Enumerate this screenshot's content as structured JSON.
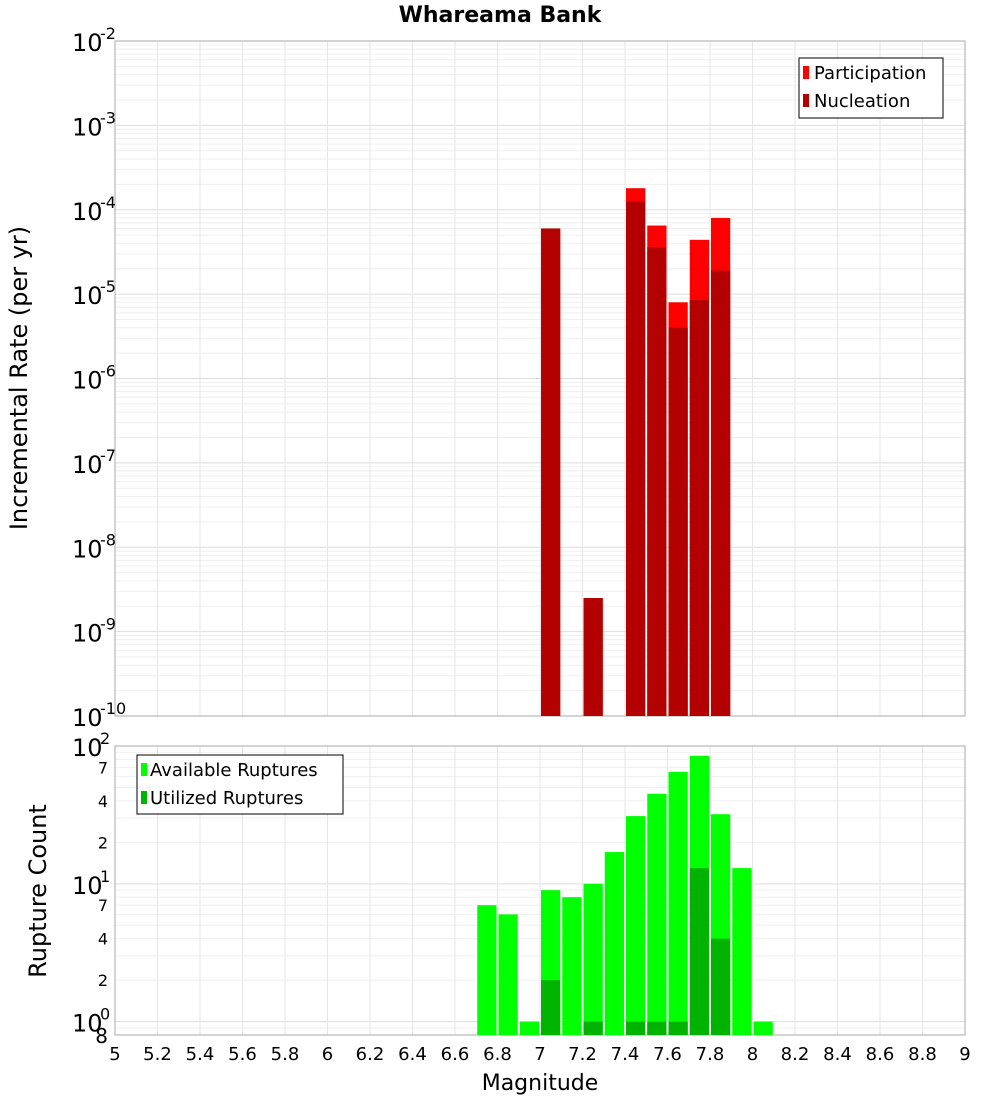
{
  "chart_data": [
    {
      "type": "bar",
      "title": "Whareama Bank",
      "ylabel": "Incremental Rate (per yr)",
      "yscale": "log",
      "ylim": [
        1e-10,
        0.01
      ],
      "xlim": [
        5,
        9
      ],
      "y_tick_exponents": [
        "-10",
        "-9",
        "-8",
        "-7",
        "-6",
        "-5",
        "-4",
        "-3",
        "-2"
      ],
      "y_tick_base": "10",
      "legend_position": "top-right",
      "series": [
        {
          "name": "Participation",
          "color": "#ff0000",
          "x": [
            7.05,
            7.25,
            7.45,
            7.55,
            7.65,
            7.75,
            7.85
          ],
          "values": [
            6e-05,
            2.5e-09,
            0.00018,
            6.5e-05,
            8e-06,
            4.4e-05,
            8e-05
          ]
        },
        {
          "name": "Nucleation",
          "color": "#b30000",
          "x": [
            7.05,
            7.25,
            7.45,
            7.55,
            7.65,
            7.75,
            7.85
          ],
          "values": [
            6e-05,
            2.5e-09,
            0.000125,
            3.6e-05,
            4e-06,
            8.5e-06,
            1.9e-05
          ]
        }
      ]
    },
    {
      "type": "bar",
      "xlabel": "Magnitude",
      "ylabel": "Rupture Count",
      "yscale": "log",
      "ylim": [
        0.8,
        100
      ],
      "xlim": [
        5,
        9
      ],
      "y_major_ticks": [
        {
          "base": "10",
          "exp": "0"
        },
        {
          "base": "10",
          "exp": "1"
        },
        {
          "base": "10",
          "exp": "2"
        }
      ],
      "y_minor_ticks": [
        {
          "value": 2,
          "label": "2"
        },
        {
          "value": 4,
          "label": "4"
        },
        {
          "value": 7,
          "label": "7"
        },
        {
          "value": 20,
          "label": "2"
        },
        {
          "value": 40,
          "label": "4"
        },
        {
          "value": 70,
          "label": "7"
        }
      ],
      "y_bottom_label": "8",
      "x_ticks": [
        "5",
        "5.2",
        "5.4",
        "5.6",
        "5.8",
        "6",
        "6.2",
        "6.4",
        "6.6",
        "6.8",
        "7",
        "7.2",
        "7.4",
        "7.6",
        "7.8",
        "8",
        "8.2",
        "8.4",
        "8.6",
        "8.8",
        "9"
      ],
      "legend_position": "top-left",
      "series": [
        {
          "name": "Available Ruptures",
          "color": "#00ff00",
          "x": [
            6.75,
            6.85,
            6.95,
            7.05,
            7.15,
            7.25,
            7.35,
            7.45,
            7.55,
            7.65,
            7.75,
            7.85,
            7.95,
            8.05
          ],
          "values": [
            7,
            6,
            1,
            9,
            8,
            10,
            17,
            31,
            45,
            65,
            85,
            32,
            13,
            1
          ]
        },
        {
          "name": "Utilized Ruptures",
          "color": "#00b300",
          "x": [
            7.05,
            7.25,
            7.45,
            7.55,
            7.65,
            7.75,
            7.85
          ],
          "values": [
            2,
            1,
            1,
            1,
            1,
            13,
            4
          ]
        }
      ]
    }
  ]
}
